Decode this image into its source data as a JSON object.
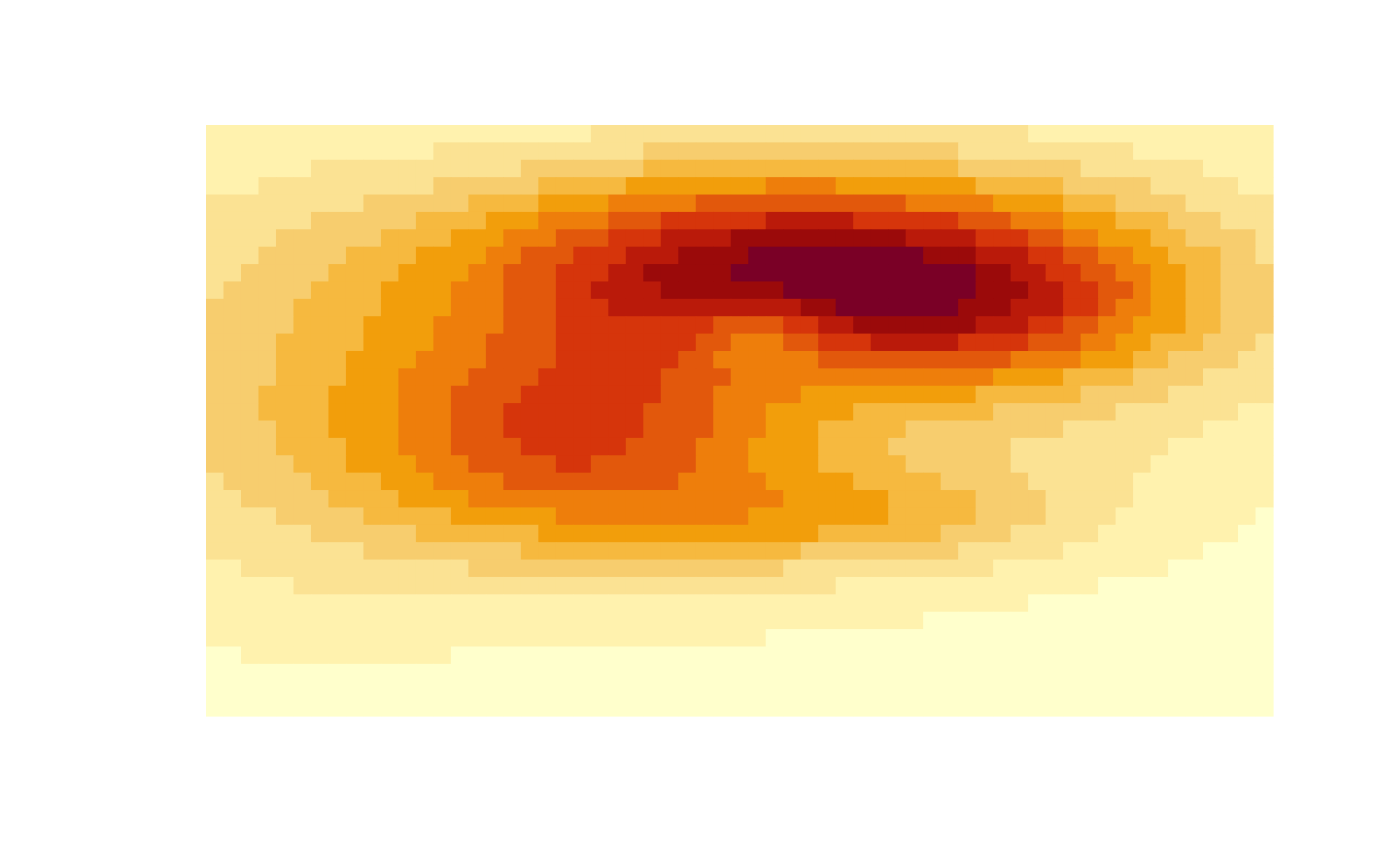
{
  "chart_data": {
    "type": "heatmap",
    "title": "",
    "xlabel": "",
    "ylabel": "",
    "axes_shown": false,
    "legend": "none",
    "palette": [
      "#FFFFCC",
      "#FFF2AE",
      "#FBE293",
      "#F7CD6E",
      "#F6B93F",
      "#F29E0B",
      "#EE7E0B",
      "#E2580C",
      "#D6350B",
      "#BA1A0A",
      "#9B0A0A",
      "#7A0026"
    ],
    "levels": 12,
    "grid": {
      "nx": 61,
      "ny": 34,
      "row_order": "top-to-bottom",
      "surface": {
        "base": 0.2,
        "bumps": [
          {
            "cx": 0.53,
            "cy": 0.24,
            "sx": 0.2,
            "sy": 0.11,
            "amp": 10.2
          },
          {
            "cx": 0.73,
            "cy": 0.31,
            "sx": 0.13,
            "sy": 0.09,
            "amp": 4.5
          },
          {
            "cx": 0.34,
            "cy": 0.53,
            "sx": 0.14,
            "sy": 0.13,
            "amp": 6.8
          },
          {
            "cx": 0.6,
            "cy": 0.66,
            "sx": 0.14,
            "sy": 0.06,
            "amp": 3.2
          },
          {
            "cx": 0.5,
            "cy": 0.42,
            "sx": 0.35,
            "sy": 0.28,
            "amp": 3.0
          },
          {
            "cx": 0.52,
            "cy": 0.35,
            "sx": 0.05,
            "sy": 0.05,
            "amp": -3.5
          },
          {
            "cx": 0.06,
            "cy": 0.45,
            "sx": 0.14,
            "sy": 0.3,
            "amp": 2.0
          },
          {
            "cx": 0.85,
            "cy": 0.25,
            "sx": 0.2,
            "sy": 0.18,
            "amp": 1.4
          }
        ]
      }
    }
  }
}
